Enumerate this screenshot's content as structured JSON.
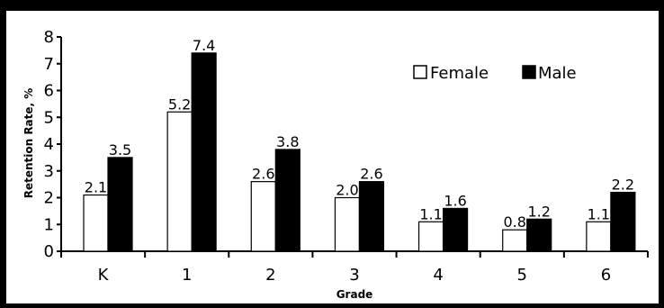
{
  "chart_data": {
    "type": "bar",
    "categories": [
      "K",
      "1",
      "2",
      "3",
      "4",
      "5",
      "6"
    ],
    "series": [
      {
        "name": "Female",
        "color": "#ffffff",
        "values": [
          2.1,
          5.2,
          2.6,
          2.0,
          1.1,
          0.8,
          1.1
        ],
        "value_labels": [
          "2.1",
          "5.2",
          "2.6",
          "2.0",
          "1.1",
          "0.8",
          "1.1"
        ]
      },
      {
        "name": "Male",
        "color": "#000000",
        "values": [
          3.5,
          7.4,
          3.8,
          2.6,
          1.6,
          1.2,
          2.2
        ],
        "value_labels": [
          "3.5",
          "7.4",
          "3.8",
          "2.6",
          "1.6",
          "1.2",
          "2.2"
        ]
      }
    ],
    "xlabel": "Grade",
    "ylabel": "Retention Rate, %",
    "ylim": [
      0,
      8
    ],
    "yticks": [
      "0",
      "1",
      "2",
      "3",
      "4",
      "5",
      "6",
      "7",
      "8"
    ],
    "grid": false,
    "legend": "top-right"
  }
}
